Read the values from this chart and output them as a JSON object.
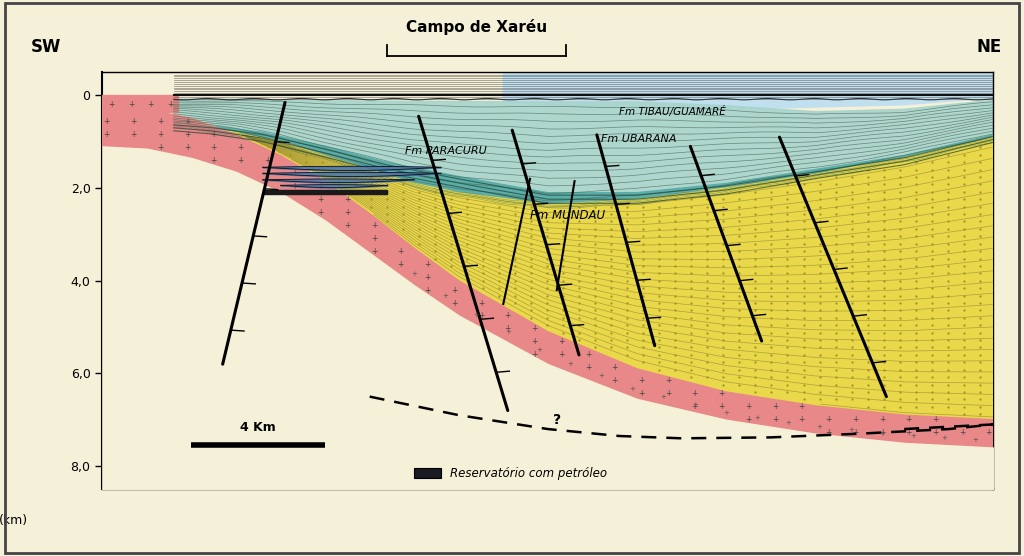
{
  "background_color": "#f5f0d8",
  "title_text": "Campo de Xaréu",
  "sw_label": "SW",
  "ne_label": "NE",
  "ylabel": "(km)",
  "scale_bar_label": "4 Km",
  "legend_label": "Reservatório com petróleo",
  "formations": {
    "tibau_guamare": "Fm TIBAU/GUAMARÉ",
    "paracuru": "Fm PARACURU",
    "ubarana": "Fm UBARANA",
    "mundau": "Fm MUNDAU"
  },
  "colors": {
    "background": "#f5f0d8",
    "yellow_sed": "#e8d84a",
    "basement_pink": "#e88888",
    "teal_upper": "#7cc4bc",
    "teal_mid": "#5aada8",
    "light_teal": "#a8d4cc",
    "light_blue_sky": "#c0e0f0",
    "blue_reservoir": "#4878b0",
    "dark_reservoir": "#222222",
    "strat_line": "#555533",
    "fault_color": "#111111"
  }
}
